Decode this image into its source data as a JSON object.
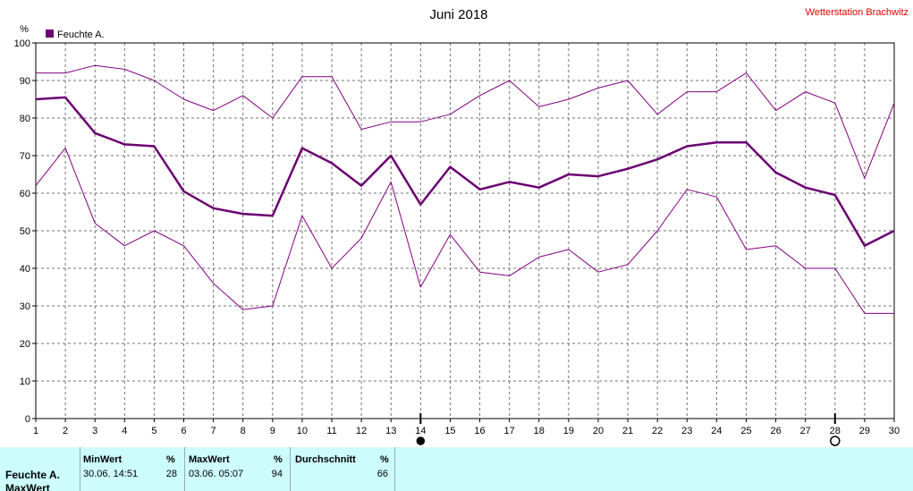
{
  "chart_data": {
    "type": "line",
    "title": "Juni 2018",
    "station": "Wetterstation Brachwitz",
    "unit": "%",
    "xlim": [
      1,
      30
    ],
    "ylim": [
      0,
      100
    ],
    "grid": true,
    "legend": {
      "placement": "top-left",
      "label": "Feuchte A.",
      "color": "#6a0070"
    },
    "x": [
      1,
      2,
      3,
      4,
      5,
      6,
      7,
      8,
      9,
      10,
      11,
      12,
      13,
      14,
      15,
      16,
      17,
      18,
      19,
      20,
      21,
      22,
      23,
      24,
      25,
      26,
      27,
      28,
      29,
      30
    ],
    "x_ticks": [
      "1",
      "2",
      "3",
      "4",
      "5",
      "6",
      "7",
      "8",
      "9",
      "10",
      "11",
      "12",
      "13",
      "14",
      "15",
      "16",
      "17",
      "18",
      "19",
      "20",
      "21",
      "22",
      "23",
      "24",
      "25",
      "26",
      "27",
      "28",
      "29",
      "30"
    ],
    "y_ticks": [
      "0",
      "10",
      "20",
      "30",
      "40",
      "50",
      "60",
      "70",
      "80",
      "90",
      "100"
    ],
    "series": [
      {
        "role": "max",
        "color": "#800080",
        "width": 1,
        "values": [
          92,
          92,
          94,
          93,
          90,
          85,
          82,
          86,
          80,
          91,
          91,
          77,
          79,
          79,
          81,
          86,
          90,
          83,
          85,
          88,
          90,
          81,
          87,
          87,
          92,
          82,
          87,
          84,
          64,
          84
        ]
      },
      {
        "role": "avg",
        "color": "#6a0070",
        "width": 2.5,
        "values": [
          85,
          85.5,
          76,
          73,
          72.5,
          60.5,
          56,
          54.5,
          54,
          72,
          68,
          62,
          70,
          57,
          67,
          61,
          63,
          61.5,
          65,
          64.5,
          66.5,
          69,
          72.5,
          73.5,
          73.5,
          65.5,
          61.5,
          59.5,
          46,
          50
        ]
      },
      {
        "role": "min",
        "color": "#800080",
        "width": 1,
        "values": [
          62,
          72,
          52,
          46,
          50,
          46,
          36,
          29,
          30,
          54,
          40,
          48,
          63,
          35,
          49,
          39,
          38,
          43,
          45,
          39,
          41,
          50,
          61,
          59,
          45,
          46,
          40,
          40,
          28,
          28
        ]
      }
    ],
    "markers": [
      {
        "x": 14,
        "kind": "filled-circle"
      },
      {
        "x": 28,
        "kind": "open-circle"
      }
    ]
  },
  "summary": {
    "row1_label": "Feuchte A.",
    "row2_label": "MaxWert",
    "min": {
      "header": "MinWert",
      "unit": "%",
      "time": "30.06.  14:51",
      "value": "28"
    },
    "max": {
      "header": "MaxWert",
      "unit": "%",
      "time": "03.06.  05:07",
      "value": "94"
    },
    "avg": {
      "header": "Durchschnitt",
      "unit": "%",
      "value": "66"
    }
  }
}
